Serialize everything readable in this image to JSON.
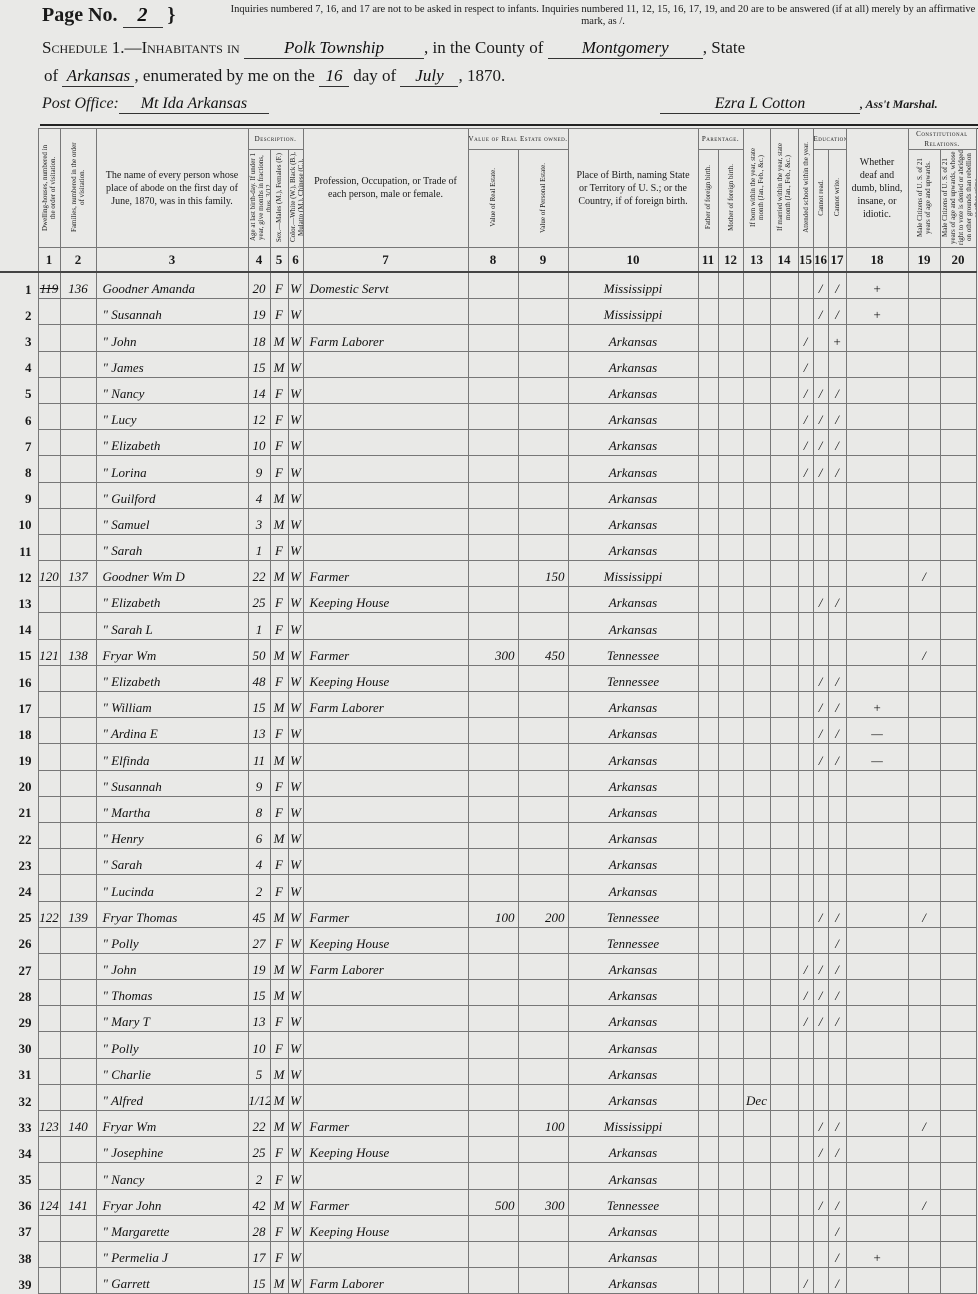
{
  "header": {
    "page_label": "Page No.",
    "page_number": "2",
    "note": "Inquiries numbered 7, 16, and 17 are not to be asked in respect to infants. Inquiries numbered 11, 12, 15, 16, 17, 19, and 20 are to be answered (if at all) merely by an affirmative mark, as /.",
    "schedule_label": "Schedule 1.—Inhabitants in",
    "township": "Polk Township",
    "county_label": ", in the County of",
    "county": "Montgomery",
    "state_label": ", State",
    "of_label": "of",
    "state": "Arkansas",
    "enumerated_label": ", enumerated by me on the",
    "day": "16",
    "day_of_label": "day of",
    "month": "July",
    "year": ", 1870.",
    "post_office_label": "Post Office:",
    "post_office": "Mt Ida Arkansas",
    "marshal_signature": "Ezra L Cotton",
    "marshal_label": ", Ass't Marshal."
  },
  "columns": {
    "groups": {
      "description": "Description.",
      "real_estate": "Value of Real Estate owned.",
      "parentage": "Parentage.",
      "education": "Education.",
      "constitutional": "Constitutional Relations."
    },
    "c1": "Dwelling-houses, numbered in the order of visitation.",
    "c2": "Families, numbered in the order of visitation.",
    "c3": "The name of every person whose place of abode on the first day of June, 1870, was in this family.",
    "c4": "Age at last birth-day. If under 1 year, give months in fractions, thus, 3/12.",
    "c5": "Sex.—Males (M.), Females (F.)",
    "c6": "Color.—White (W.), Black (B.), Mulatto (M.), Chinese (C.), Indian (I.)",
    "c7": "Profession, Occupation, or Trade of each person, male or female.",
    "c8": "Value of Real Estate.",
    "c9": "Value of Personal Estate.",
    "c10": "Place of Birth, naming State or Territory of U. S.; or the Country, if of foreign birth.",
    "c11": "Father of foreign birth.",
    "c12": "Mother of foreign birth.",
    "c13": "If born within the year, state month (Jan., Feb., &c.)",
    "c14": "If married within the year, state month (Jan., Feb., &c.)",
    "c15": "Attended school within the year.",
    "c16": "Cannot read.",
    "c17": "Cannot write.",
    "c18": "Whether deaf and dumb, blind, insane, or idiotic.",
    "c19": "Male Citizens of U. S. of 21 years of age and upwards.",
    "c20": "Male Citizens of U. S. of 21 years of age and upwards, whose right to vote is denied or abridged on other grounds than rebellion or other crime.",
    "numbers": [
      "1",
      "2",
      "3",
      "4",
      "5",
      "6",
      "7",
      "8",
      "9",
      "10",
      "11",
      "12",
      "13",
      "14",
      "15",
      "16",
      "17",
      "18",
      "19",
      "20"
    ]
  },
  "rows": [
    {
      "line": "1",
      "dwelling": "119",
      "family": "136",
      "name": "Goodner Amanda",
      "age": "20",
      "sex": "F",
      "color": "W",
      "occupation": "Domestic Servt",
      "real": "",
      "personal": "",
      "birthplace": "Mississippi",
      "c13": "",
      "c15": "",
      "c16": "/",
      "c17": "/",
      "c18": "+",
      "c19": ""
    },
    {
      "line": "2",
      "name": "\" Susannah",
      "age": "19",
      "sex": "F",
      "color": "W",
      "occupation": "",
      "birthplace": "Mississippi",
      "c16": "/",
      "c17": "/",
      "c18": "+"
    },
    {
      "line": "3",
      "name": "\" John",
      "age": "18",
      "sex": "M",
      "color": "W",
      "occupation": "Farm Laborer",
      "birthplace": "Arkansas",
      "c15": "/",
      "c17": "+"
    },
    {
      "line": "4",
      "name": "\" James",
      "age": "15",
      "sex": "M",
      "color": "W",
      "birthplace": "Arkansas",
      "c15": "/"
    },
    {
      "line": "5",
      "name": "\" Nancy",
      "age": "14",
      "sex": "F",
      "color": "W",
      "birthplace": "Arkansas",
      "c15": "/",
      "c16": "/",
      "c17": "/"
    },
    {
      "line": "6",
      "name": "\" Lucy",
      "age": "12",
      "sex": "F",
      "color": "W",
      "birthplace": "Arkansas",
      "c15": "/",
      "c16": "/",
      "c17": "/"
    },
    {
      "line": "7",
      "name": "\" Elizabeth",
      "age": "10",
      "sex": "F",
      "color": "W",
      "birthplace": "Arkansas",
      "c15": "/",
      "c16": "/",
      "c17": "/"
    },
    {
      "line": "8",
      "name": "\" Lorina",
      "age": "9",
      "sex": "F",
      "color": "W",
      "birthplace": "Arkansas",
      "c15": "/",
      "c16": "/",
      "c17": "/"
    },
    {
      "line": "9",
      "name": "\" Guilford",
      "age": "4",
      "sex": "M",
      "color": "W",
      "birthplace": "Arkansas"
    },
    {
      "line": "10",
      "name": "\" Samuel",
      "age": "3",
      "sex": "M",
      "color": "W",
      "birthplace": "Arkansas"
    },
    {
      "line": "11",
      "name": "\" Sarah",
      "age": "1",
      "sex": "F",
      "color": "W",
      "birthplace": "Arkansas"
    },
    {
      "line": "12",
      "dwelling": "120",
      "family": "137",
      "name": "Goodner Wm D",
      "age": "22",
      "sex": "M",
      "color": "W",
      "occupation": "Farmer",
      "real": "",
      "personal": "150",
      "birthplace": "Mississippi",
      "c19": "/"
    },
    {
      "line": "13",
      "name": "\" Elizabeth",
      "age": "25",
      "sex": "F",
      "color": "W",
      "occupation": "Keeping House",
      "birthplace": "Arkansas",
      "c16": "/",
      "c17": "/"
    },
    {
      "line": "14",
      "name": "\" Sarah L",
      "age": "1",
      "sex": "F",
      "color": "W",
      "birthplace": "Arkansas"
    },
    {
      "line": "15",
      "dwelling": "121",
      "family": "138",
      "name": "Fryar Wm",
      "age": "50",
      "sex": "M",
      "color": "W",
      "occupation": "Farmer",
      "real": "300",
      "personal": "450",
      "birthplace": "Tennessee",
      "c19": "/"
    },
    {
      "line": "16",
      "name": "\" Elizabeth",
      "age": "48",
      "sex": "F",
      "color": "W",
      "occupation": "Keeping House",
      "birthplace": "Tennessee",
      "c16": "/",
      "c17": "/"
    },
    {
      "line": "17",
      "name": "\" William",
      "age": "15",
      "sex": "M",
      "color": "W",
      "occupation": "Farm Laborer",
      "birthplace": "Arkansas",
      "c16": "/",
      "c17": "/",
      "c18": "+"
    },
    {
      "line": "18",
      "name": "\" Ardina E",
      "age": "13",
      "sex": "F",
      "color": "W",
      "birthplace": "Arkansas",
      "c16": "/",
      "c17": "/",
      "c18": "—"
    },
    {
      "line": "19",
      "name": "\" Elfinda",
      "age": "11",
      "sex": "M",
      "color": "W",
      "birthplace": "Arkansas",
      "c16": "/",
      "c17": "/",
      "c18": "—"
    },
    {
      "line": "20",
      "name": "\" Susannah",
      "age": "9",
      "sex": "F",
      "color": "W",
      "birthplace": "Arkansas"
    },
    {
      "line": "21",
      "name": "\" Martha",
      "age": "8",
      "sex": "F",
      "color": "W",
      "birthplace": "Arkansas"
    },
    {
      "line": "22",
      "name": "\" Henry",
      "age": "6",
      "sex": "M",
      "color": "W",
      "birthplace": "Arkansas"
    },
    {
      "line": "23",
      "name": "\" Sarah",
      "age": "4",
      "sex": "F",
      "color": "W",
      "birthplace": "Arkansas"
    },
    {
      "line": "24",
      "name": "\" Lucinda",
      "age": "2",
      "sex": "F",
      "color": "W",
      "birthplace": "Arkansas"
    },
    {
      "line": "25",
      "dwelling": "122",
      "family": "139",
      "name": "Fryar Thomas",
      "age": "45",
      "sex": "M",
      "color": "W",
      "occupation": "Farmer",
      "real": "100",
      "personal": "200",
      "birthplace": "Tennessee",
      "c16": "/",
      "c17": "/",
      "c19": "/"
    },
    {
      "line": "26",
      "name": "\" Polly",
      "age": "27",
      "sex": "F",
      "color": "W",
      "occupation": "Keeping House",
      "birthplace": "Tennessee",
      "c17": "/"
    },
    {
      "line": "27",
      "name": "\" John",
      "age": "19",
      "sex": "M",
      "color": "W",
      "occupation": "Farm Laborer",
      "birthplace": "Arkansas",
      "c15": "/",
      "c16": "/",
      "c17": "/"
    },
    {
      "line": "28",
      "name": "\" Thomas",
      "age": "15",
      "sex": "M",
      "color": "W",
      "birthplace": "Arkansas",
      "c15": "/",
      "c16": "/",
      "c17": "/"
    },
    {
      "line": "29",
      "name": "\" Mary T",
      "age": "13",
      "sex": "F",
      "color": "W",
      "birthplace": "Arkansas",
      "c15": "/",
      "c16": "/",
      "c17": "/"
    },
    {
      "line": "30",
      "name": "\" Polly",
      "age": "10",
      "sex": "F",
      "color": "W",
      "birthplace": "Arkansas"
    },
    {
      "line": "31",
      "name": "\" Charlie",
      "age": "5",
      "sex": "M",
      "color": "W",
      "birthplace": "Arkansas"
    },
    {
      "line": "32",
      "name": "\" Alfred",
      "age": "1/12",
      "sex": "M",
      "color": "W",
      "birthplace": "Arkansas",
      "c13": "Dec"
    },
    {
      "line": "33",
      "dwelling": "123",
      "family": "140",
      "name": "Fryar Wm",
      "age": "22",
      "sex": "M",
      "color": "W",
      "occupation": "Farmer",
      "real": "",
      "personal": "100",
      "birthplace": "Mississippi",
      "c16": "/",
      "c17": "/",
      "c19": "/"
    },
    {
      "line": "34",
      "name": "\" Josephine",
      "age": "25",
      "sex": "F",
      "color": "W",
      "occupation": "Keeping House",
      "birthplace": "Arkansas",
      "c16": "/",
      "c17": "/"
    },
    {
      "line": "35",
      "name": "\" Nancy",
      "age": "2",
      "sex": "F",
      "color": "W",
      "birthplace": "Arkansas"
    },
    {
      "line": "36",
      "dwelling": "124",
      "family": "141",
      "name": "Fryar John",
      "age": "42",
      "sex": "M",
      "color": "W",
      "occupation": "Farmer",
      "real": "500",
      "personal": "300",
      "birthplace": "Tennessee",
      "c16": "/",
      "c17": "/",
      "c19": "/"
    },
    {
      "line": "37",
      "name": "\" Margarette",
      "age": "28",
      "sex": "F",
      "color": "W",
      "occupation": "Keeping House",
      "birthplace": "Arkansas",
      "c17": "/"
    },
    {
      "line": "38",
      "name": "\" Permelia J",
      "age": "17",
      "sex": "F",
      "color": "W",
      "birthplace": "Arkansas",
      "c17": "/",
      "c18": "+"
    },
    {
      "line": "39",
      "name": "\" Garrett",
      "age": "15",
      "sex": "M",
      "color": "W",
      "occupation": "Farm Laborer",
      "birthplace": "Arkansas",
      "c15": "/",
      "c17": "/"
    }
  ]
}
